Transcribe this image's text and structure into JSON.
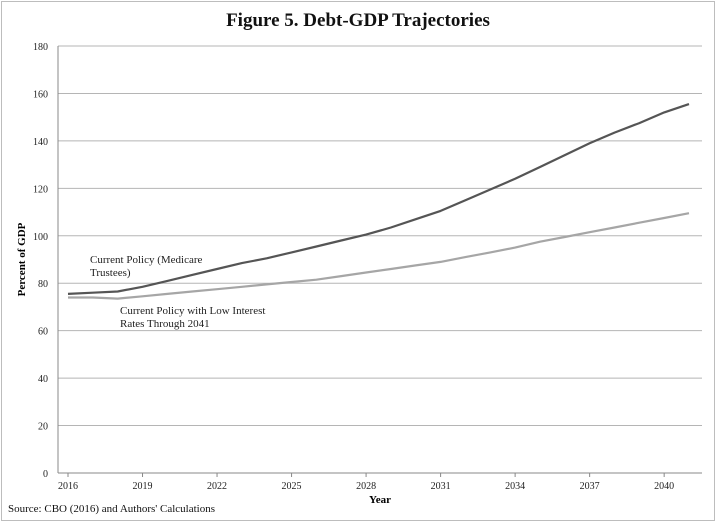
{
  "chart_data": {
    "type": "line",
    "title": "Figure 5. Debt-GDP Trajectories",
    "xlabel": "Year",
    "ylabel": "Percent of GDP",
    "ylim": [
      0,
      180
    ],
    "yticks": [
      0,
      20,
      40,
      60,
      80,
      100,
      120,
      140,
      160,
      180
    ],
    "xticks": [
      2016,
      2019,
      2022,
      2025,
      2028,
      2031,
      2034,
      2037,
      2040
    ],
    "grid": true,
    "x": [
      2016,
      2017,
      2018,
      2019,
      2020,
      2021,
      2022,
      2023,
      2024,
      2025,
      2026,
      2027,
      2028,
      2029,
      2030,
      2031,
      2032,
      2033,
      2034,
      2035,
      2036,
      2037,
      2038,
      2039,
      2040,
      2041
    ],
    "series": [
      {
        "name": "Current Policy (Medicare Trustees)",
        "label_lines": [
          "Current Policy (Medicare",
          "Trustees)"
        ],
        "color": "#555555",
        "values": [
          75.5,
          76,
          76.5,
          78.5,
          81,
          83.5,
          86,
          88.5,
          90.5,
          93,
          95.5,
          98,
          100.5,
          103.5,
          107,
          110.5,
          115,
          119.5,
          124,
          129,
          134,
          139,
          143.5,
          147.5,
          152,
          155.5
        ]
      },
      {
        "name": "Current Policy with Low Interest Rates Through 2041",
        "label_lines": [
          "Current Policy with Low Interest",
          "Rates Through 2041"
        ],
        "color": "#a6a6a6",
        "values": [
          74,
          74,
          73.5,
          74.5,
          75.5,
          76.5,
          77.5,
          78.5,
          79.5,
          80.5,
          81.5,
          83,
          84.5,
          86,
          87.5,
          89,
          91,
          93,
          95,
          97.5,
          99.5,
          101.5,
          103.5,
          105.5,
          107.5,
          109.5
        ]
      }
    ]
  },
  "source": "Source: CBO (2016) and Authors' Calculations"
}
